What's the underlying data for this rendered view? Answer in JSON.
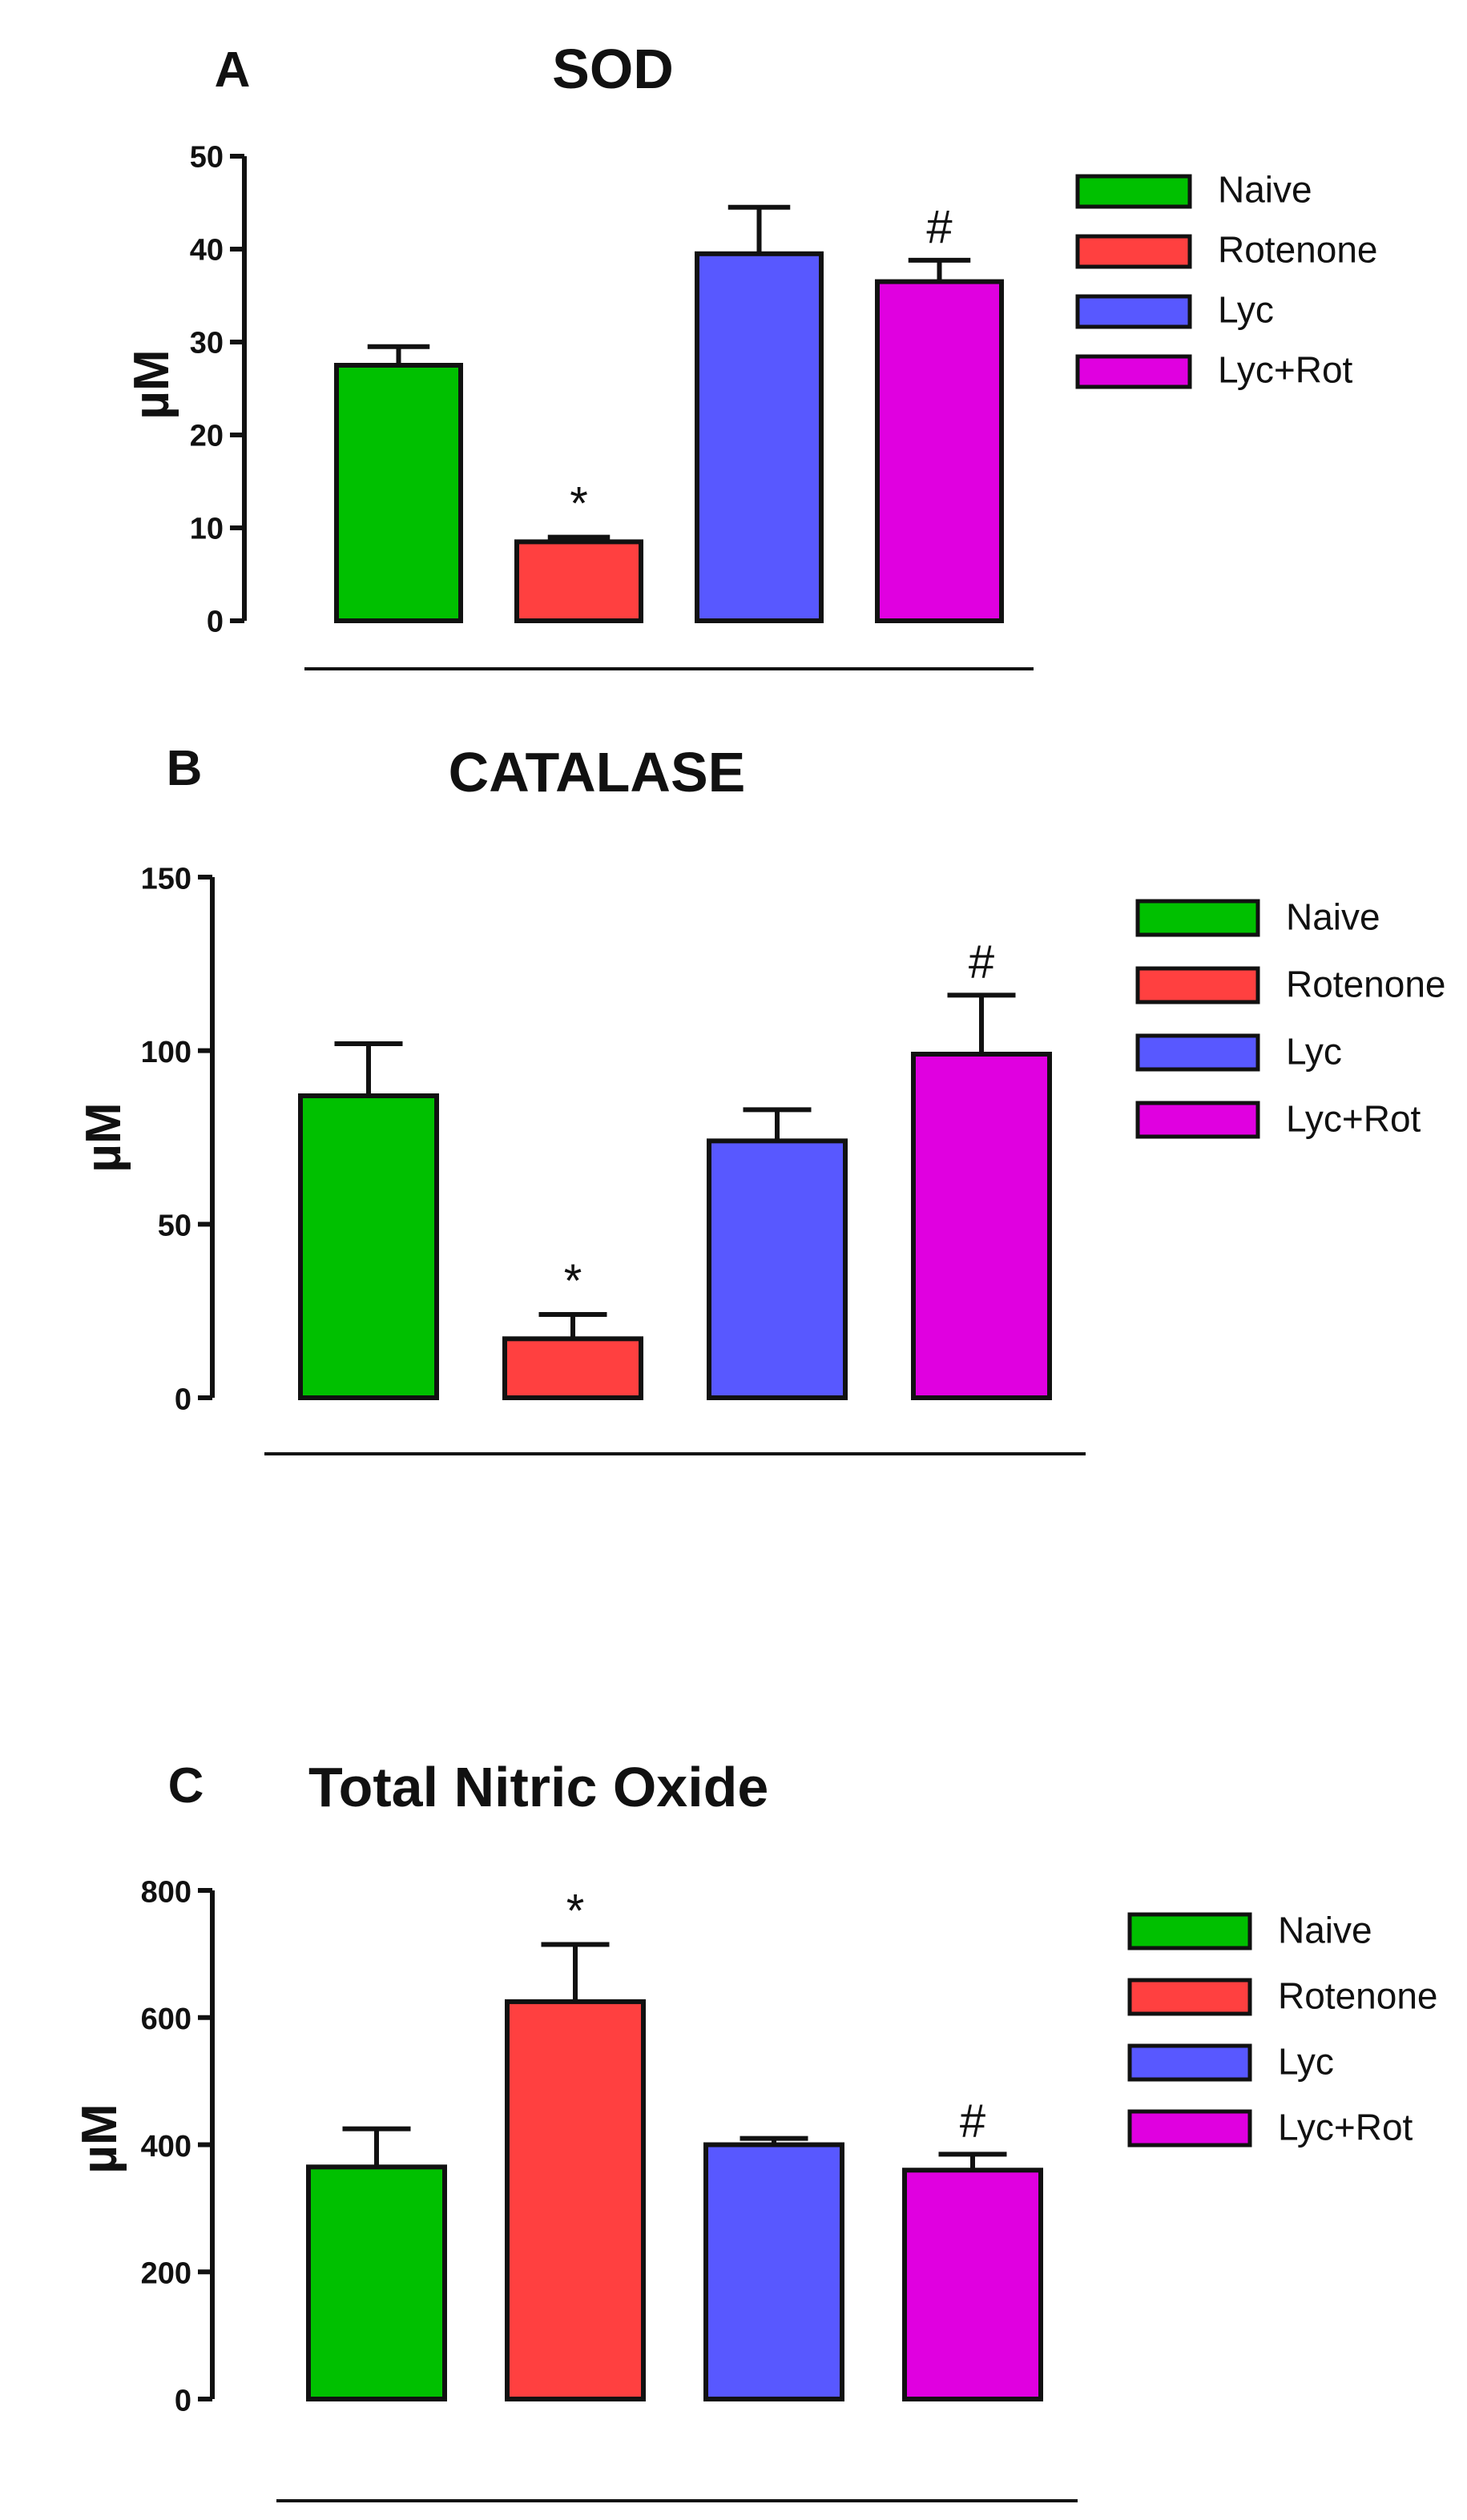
{
  "colors": {
    "Naive": "#00c000",
    "Rotenone": "#ff4040",
    "Lyc": "#5858ff",
    "Lyc+Rot": "#e000e0"
  },
  "chart_data": [
    {
      "type": "bar",
      "letter": "A",
      "title": "SOD",
      "ylabel": "µM",
      "xlabel": "",
      "ylim": [
        0,
        50
      ],
      "yticks": [
        "0",
        "10",
        "20",
        "30",
        "40",
        "50"
      ],
      "categories": [
        "Naive",
        "Rotenone",
        "Lyc",
        "Lyc+Rot"
      ],
      "values": [
        27.5,
        8.5,
        39.5,
        36.5
      ],
      "errors": [
        2.0,
        0.5,
        5.0,
        2.3
      ],
      "annotations": [
        "",
        "*",
        "",
        "#"
      ],
      "legend": [
        "Naive",
        "Rotenone",
        "Lyc",
        "Lyc+Rot"
      ],
      "legend_position": "top-right"
    },
    {
      "type": "bar",
      "letter": "B",
      "title": "CATALASE",
      "ylabel": "µM",
      "xlabel": "",
      "ylim": [
        0,
        150
      ],
      "yticks": [
        "0",
        "50",
        "100",
        "150"
      ],
      "categories": [
        "Naive",
        "Rotenone",
        "Lyc",
        "Lyc+Rot"
      ],
      "values": [
        87,
        17,
        74,
        99
      ],
      "errors": [
        15,
        7,
        9,
        17
      ],
      "annotations": [
        "",
        "*",
        "",
        "#"
      ],
      "legend": [
        "Naive",
        "Rotenone",
        "Lyc",
        "Lyc+Rot"
      ],
      "legend_position": "top-right"
    },
    {
      "type": "bar",
      "letter": "C",
      "title": "Total Nitric Oxide",
      "ylabel": "µM",
      "xlabel": "",
      "ylim": [
        0,
        800
      ],
      "yticks": [
        "0",
        "200",
        "400",
        "600",
        "800"
      ],
      "categories": [
        "Naive",
        "Rotenone",
        "Lyc",
        "Lyc+Rot"
      ],
      "values": [
        365,
        625,
        400,
        360
      ],
      "errors": [
        60,
        90,
        10,
        25
      ],
      "annotations": [
        "",
        "*",
        "",
        "#"
      ],
      "legend": [
        "Naive",
        "Rotenone",
        "Lyc",
        "Lyc+Rot"
      ],
      "legend_position": "top-right"
    }
  ]
}
